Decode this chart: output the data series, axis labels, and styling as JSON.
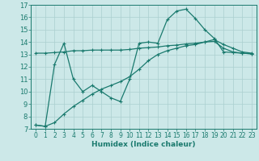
{
  "xlabel": "Humidex (Indice chaleur)",
  "bg_color": "#cce8e8",
  "grid_color": "#aacfcf",
  "line_color": "#1a7a6e",
  "spine_color": "#1a7a6e",
  "xlim": [
    -0.5,
    23.5
  ],
  "ylim": [
    7,
    17
  ],
  "xticks": [
    0,
    1,
    2,
    3,
    4,
    5,
    6,
    7,
    8,
    9,
    10,
    11,
    12,
    13,
    14,
    15,
    16,
    17,
    18,
    19,
    20,
    21,
    22,
    23
  ],
  "yticks": [
    7,
    8,
    9,
    10,
    11,
    12,
    13,
    14,
    15,
    16,
    17
  ],
  "series": [
    [
      7.3,
      7.2,
      12.2,
      13.9,
      11.0,
      10.0,
      10.5,
      10.0,
      9.5,
      9.2,
      11.0,
      13.9,
      14.0,
      13.9,
      15.8,
      16.5,
      16.65,
      15.9,
      15.0,
      14.3,
      13.2,
      13.15,
      13.1,
      13.05
    ],
    [
      7.3,
      7.2,
      7.5,
      8.2,
      8.8,
      9.3,
      9.8,
      10.2,
      10.5,
      10.8,
      11.2,
      11.8,
      12.5,
      13.0,
      13.3,
      13.5,
      13.7,
      13.8,
      14.0,
      14.2,
      13.8,
      13.5,
      13.2,
      13.1
    ],
    [
      13.1,
      13.1,
      13.15,
      13.2,
      13.3,
      13.3,
      13.35,
      13.35,
      13.35,
      13.35,
      13.4,
      13.5,
      13.55,
      13.6,
      13.7,
      13.75,
      13.85,
      13.9,
      14.0,
      14.05,
      13.5,
      13.2,
      13.1,
      13.05
    ]
  ]
}
